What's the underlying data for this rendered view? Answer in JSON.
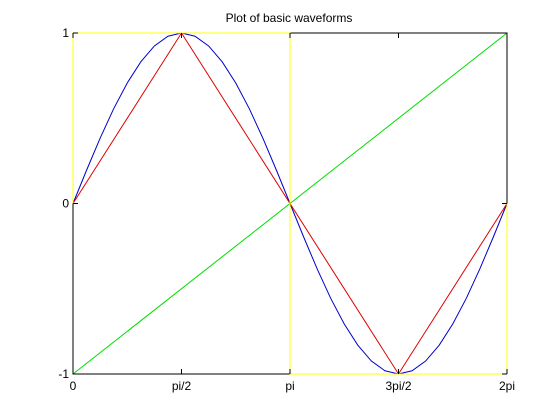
{
  "chart_data": {
    "type": "line",
    "title": "Plot of basic waveforms",
    "xlabel": "",
    "ylabel": "",
    "xlim": [
      0,
      6.283185307
    ],
    "ylim": [
      -1,
      1
    ],
    "x_ticks": [
      {
        "value": 0,
        "label": "0"
      },
      {
        "value": 1.570796327,
        "label": "pi/2"
      },
      {
        "value": 3.141592654,
        "label": "pi"
      },
      {
        "value": 4.71238898,
        "label": "3pi/2"
      },
      {
        "value": 6.283185307,
        "label": "2pi"
      }
    ],
    "y_ticks": [
      {
        "value": -1,
        "label": "-1"
      },
      {
        "value": 0,
        "label": "0"
      },
      {
        "value": 1,
        "label": "1"
      }
    ],
    "grid": false,
    "series": [
      {
        "color": "#0000cc",
        "x": [
          0,
          0.19635,
          0.3927,
          0.589049,
          0.785398,
          0.981748,
          1.178097,
          1.374447,
          1.570796,
          1.767146,
          1.963495,
          2.159845,
          2.356194,
          2.552544,
          2.748894,
          2.945243,
          3.141593,
          3.337942,
          3.534292,
          3.730641,
          3.926991,
          4.12334,
          4.31969,
          4.516039,
          4.712389,
          4.908739,
          5.105088,
          5.301438,
          5.497787,
          5.694137,
          5.890486,
          6.086836,
          6.283185
        ],
        "y": [
          0,
          0.195,
          0.383,
          0.556,
          0.707,
          0.831,
          0.924,
          0.981,
          1,
          0.981,
          0.924,
          0.831,
          0.707,
          0.556,
          0.383,
          0.195,
          0,
          -0.195,
          -0.383,
          -0.556,
          -0.707,
          -0.831,
          -0.924,
          -0.981,
          -1,
          -0.981,
          -0.924,
          -0.831,
          -0.707,
          -0.556,
          -0.383,
          -0.195,
          0
        ]
      },
      {
        "color": "#dd0000",
        "x": [
          0,
          1.570796327,
          4.71238898,
          6.283185307
        ],
        "y": [
          0,
          1,
          -1,
          0
        ]
      },
      {
        "color": "#00dd00",
        "x": [
          0,
          6.283185307
        ],
        "y": [
          -1,
          1
        ]
      },
      {
        "color": "#ffff00",
        "x": [
          0,
          0,
          3.141592654,
          3.141592654,
          6.283185307,
          6.283185307
        ],
        "y": [
          0,
          1,
          1,
          -1,
          -1,
          0
        ]
      }
    ]
  }
}
